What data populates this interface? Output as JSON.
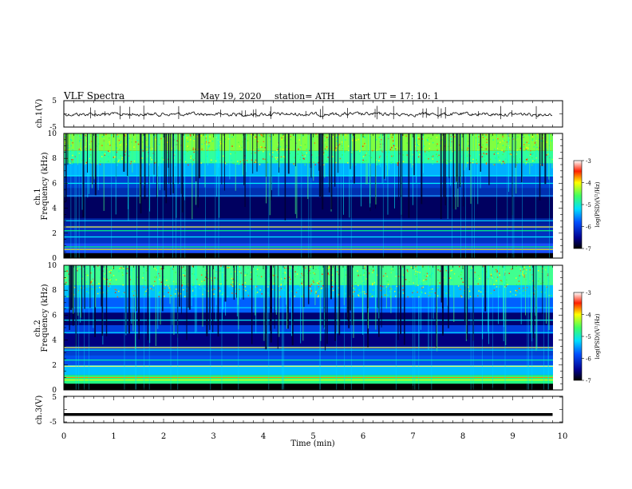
{
  "header": {
    "title": "VLF  Spectra",
    "date": "May 19, 2020",
    "station": "station= ATH",
    "start": "start  UT  =    17: 10: 1"
  },
  "chart_data": [
    {
      "type": "line",
      "panel": "ch1-waveform",
      "ylabel": "ch.1(V)",
      "ylim": [
        -5,
        5
      ],
      "yticks": [
        "5",
        "-5"
      ],
      "xlim": [
        0,
        10
      ],
      "description_values": "noisy trace near 0 V (approx -0.5 to 0.5 V) with spikes up to about 1.5 V",
      "trace_color": "#000000"
    },
    {
      "type": "heatmap",
      "panel": "ch1-spectrogram",
      "ylabel": "ch.1\nFrequency  (kHz)",
      "ylim": [
        0,
        10
      ],
      "yticks": [
        "0",
        "2",
        "4",
        "6",
        "8",
        "10"
      ],
      "xlim": [
        0,
        9.8
      ],
      "colorbar": {
        "label": "log(PSD)(V²/Hz)",
        "range": [
          -7,
          -3
        ],
        "ticks": [
          "-3",
          "-4",
          "-5",
          "-6",
          "-7"
        ]
      }
    },
    {
      "type": "heatmap",
      "panel": "ch2-spectrogram",
      "ylabel": "ch.2\nFrequency  (kHz)",
      "ylim": [
        0,
        10
      ],
      "yticks": [
        "0",
        "2",
        "4",
        "6",
        "8",
        "10"
      ],
      "xlim": [
        0,
        9.8
      ],
      "colorbar": {
        "label": "log(PSD)(V²/Hz)",
        "range": [
          -7,
          -3
        ],
        "ticks": [
          "-3",
          "-4",
          "-5",
          "-6",
          "-7"
        ]
      }
    },
    {
      "type": "line",
      "panel": "ch3-waveform",
      "ylabel": "ch.3(V)",
      "ylim": [
        -5,
        5
      ],
      "yticks": [
        "5",
        "-5"
      ],
      "xlim": [
        0,
        10
      ],
      "xlabel": "Time  (min)",
      "xticks": [
        "0",
        "1",
        "2",
        "3",
        "4",
        "5",
        "6",
        "7",
        "8",
        "9",
        "10"
      ],
      "constant_value": -2,
      "trace_color": "#000000"
    }
  ]
}
